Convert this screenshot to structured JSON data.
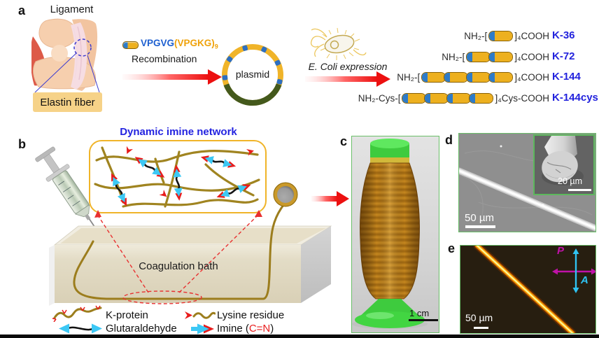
{
  "panels": {
    "a": {
      "label": "a",
      "ligament_title": "Ligament",
      "elastin_label": "Elastin fiber",
      "sequence_blue": "VPGVG",
      "sequence_orange": "(VPGKG)",
      "sequence_sub": "9",
      "step1_label": "Recombination",
      "plasmid_label": "plasmid",
      "step2_label": "E. Coli expression",
      "constructs": [
        {
          "left": "NH₂-[",
          "right": "]₄COOH",
          "name": "K-36",
          "units": 1
        },
        {
          "left": "NH₂-[",
          "right": "]₄COOH",
          "name": "K-72",
          "units": 2
        },
        {
          "left": "NH₂-[",
          "right": "]₄COOH",
          "name": "K-144",
          "units": 4
        },
        {
          "left": "NH₂-Cys-[",
          "right": "]₄Cys-COOH",
          "name": "K-144cys",
          "units": 4
        }
      ]
    },
    "b": {
      "label": "b",
      "network_title": "Dynamic imine network",
      "bath_label": "Coagulation bath",
      "legend": {
        "k_protein": "K-protein",
        "lysine": "Lysine residue",
        "glutaraldehyde": "Glutaraldehyde",
        "imine_prefix": "Imine (",
        "imine_bond": "C=N",
        "imine_suffix": ")"
      }
    },
    "c": {
      "label": "c",
      "scale_bar": "1 cm"
    },
    "d": {
      "label": "d",
      "scale_bar": "50 µm",
      "inset_scale_bar": "20 µm"
    },
    "e": {
      "label": "e",
      "scale_bar": "50 µm",
      "polarizer": "P",
      "analyzer": "A"
    }
  },
  "colors": {
    "blue_text": "#2222dd",
    "gold": "#edb01f",
    "blue_band": "#2e7bc8",
    "olive_fiber": "#9c7e1d",
    "red": "#e81c1c",
    "cyan": "#3cc8f5",
    "magenta": "#c012a8",
    "green_border": "#6abf69"
  }
}
